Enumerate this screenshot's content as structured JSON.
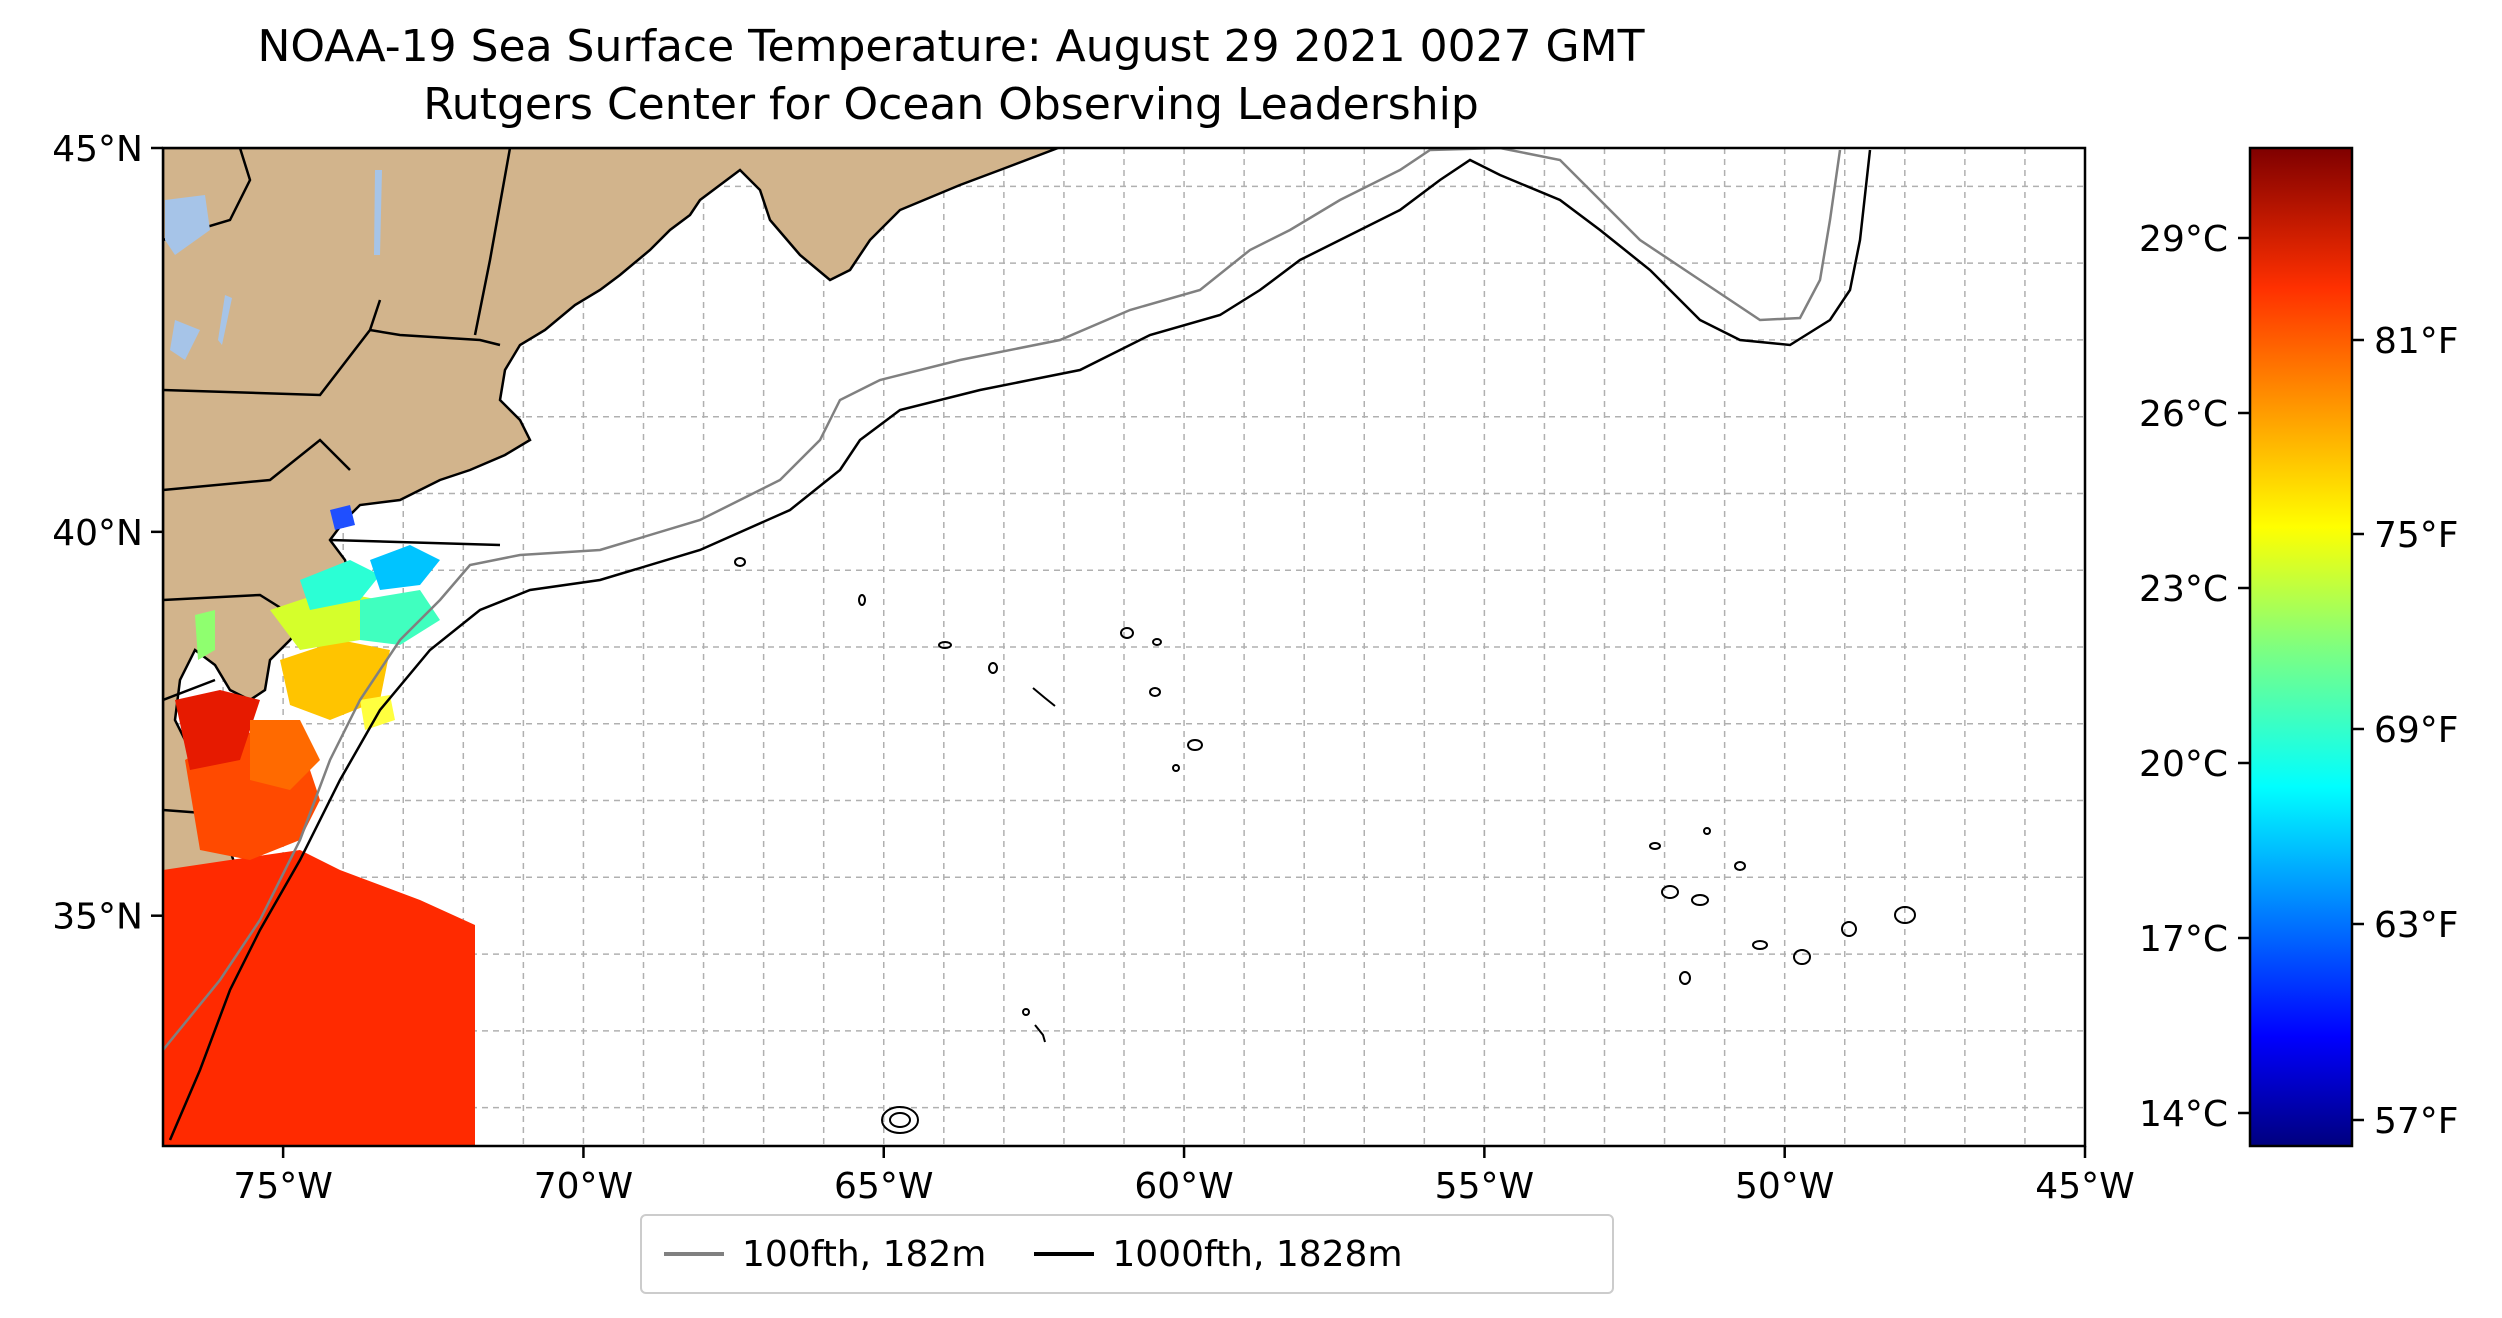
{
  "title": {
    "line1": "NOAA-19 Sea Surface Temperature: August 29 2021 0027 GMT",
    "line2": "Rutgers Center for Ocean Observing Leadership"
  },
  "map": {
    "lat_labels": [
      "45°N",
      "40°N",
      "35°N"
    ],
    "lon_labels": [
      "75°W",
      "70°W",
      "65°W",
      "60°W",
      "55°W",
      "50°W",
      "45°W"
    ],
    "land_color": "#d2b48c",
    "lake_color": "#a6c4e8",
    "grid": "dashed light gray"
  },
  "colorbar": {
    "celsius_labels": [
      "29°C",
      "26°C",
      "23°C",
      "20°C",
      "17°C",
      "14°C"
    ],
    "fahrenheit_labels": [
      "81°F",
      "75°F",
      "69°F",
      "63°F",
      "57°F"
    ],
    "colormap": "jet"
  },
  "legend": {
    "items": [
      {
        "label": "100fth, 182m",
        "color": "#808080"
      },
      {
        "label": "1000fth, 1828m",
        "color": "#000000"
      }
    ]
  }
}
